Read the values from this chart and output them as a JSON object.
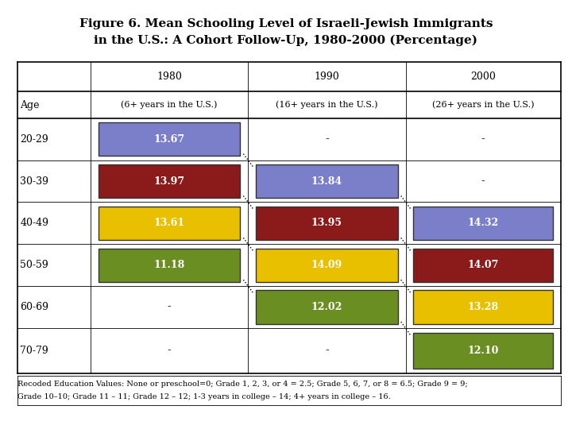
{
  "title_line1": "Figure 6. Mean Schooling Level of Israeli-Jewish Immigrants",
  "title_line2": "in the U.S.: A Cohort Follow-Up, 1980-2000 (Percentage)",
  "col_headers": [
    "1980",
    "1990",
    "2000"
  ],
  "col_subheaders": [
    "(6+ years in the U.S.)",
    "(16+ years in the U.S.)",
    "(26+ years in the U.S.)"
  ],
  "age_labels": [
    "20-29",
    "30-39",
    "40-49",
    "50-59",
    "60-69",
    "70-79"
  ],
  "cells": [
    {
      "row": 0,
      "col": 0,
      "value": "13.67",
      "color": "#7B7EC8"
    },
    {
      "row": 0,
      "col": 1,
      "value": "-",
      "color": null
    },
    {
      "row": 0,
      "col": 2,
      "value": "-",
      "color": null
    },
    {
      "row": 1,
      "col": 0,
      "value": "13.97",
      "color": "#8B1A1A"
    },
    {
      "row": 1,
      "col": 1,
      "value": "13.84",
      "color": "#7B7EC8"
    },
    {
      "row": 1,
      "col": 2,
      "value": "-",
      "color": null
    },
    {
      "row": 2,
      "col": 0,
      "value": "13.61",
      "color": "#E8C000"
    },
    {
      "row": 2,
      "col": 1,
      "value": "13.95",
      "color": "#8B1A1A"
    },
    {
      "row": 2,
      "col": 2,
      "value": "14.32",
      "color": "#7B7EC8"
    },
    {
      "row": 3,
      "col": 0,
      "value": "11.18",
      "color": "#6B8E23"
    },
    {
      "row": 3,
      "col": 1,
      "value": "14.09",
      "color": "#E8C000"
    },
    {
      "row": 3,
      "col": 2,
      "value": "14.07",
      "color": "#8B1A1A"
    },
    {
      "row": 4,
      "col": 0,
      "value": "-",
      "color": null
    },
    {
      "row": 4,
      "col": 1,
      "value": "12.02",
      "color": "#6B8E23"
    },
    {
      "row": 4,
      "col": 2,
      "value": "13.28",
      "color": "#E8C000"
    },
    {
      "row": 5,
      "col": 0,
      "value": "-",
      "color": null
    },
    {
      "row": 5,
      "col": 1,
      "value": "-",
      "color": null
    },
    {
      "row": 5,
      "col": 2,
      "value": "12.10",
      "color": "#6B8E23"
    }
  ],
  "footnote_line1": "Recoded Education Values: None or preschool=0; Grade 1, 2, 3, or 4 = 2.5; Grade 5, 6, 7, or 8 = 6.5; Grade 9 = 9;",
  "footnote_line2": "Grade 10–10; Grade 11 – 11; Grade 12 – 12; 1-3 years in college – 14; 4+ years in college – 16.",
  "cohort_lines": [
    [
      0,
      0,
      1,
      1
    ],
    [
      1,
      0,
      2,
      1
    ],
    [
      2,
      0,
      3,
      1
    ],
    [
      3,
      0,
      4,
      1
    ],
    [
      1,
      1,
      2,
      2
    ],
    [
      2,
      1,
      3,
      2
    ],
    [
      3,
      1,
      4,
      2
    ],
    [
      4,
      1,
      5,
      2
    ]
  ],
  "title_fontsize": 11,
  "header_fontsize": 9,
  "subheader_fontsize": 8,
  "age_fontsize": 9,
  "cell_fontsize": 9,
  "footnote_fontsize": 7
}
